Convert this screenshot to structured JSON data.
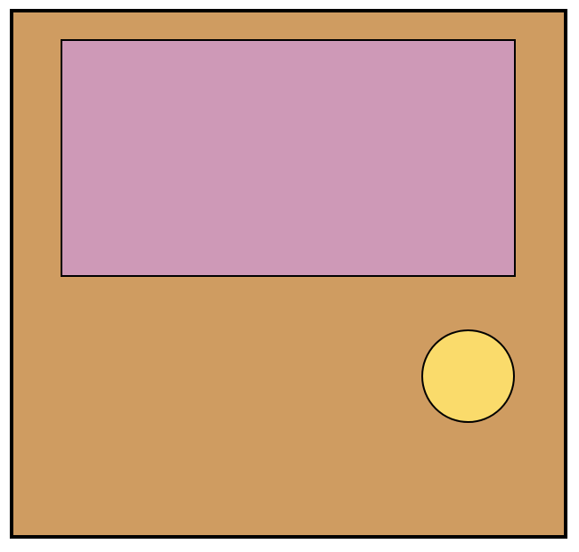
{
  "colors": {
    "background": "#ffffff",
    "panel_fill": "#cf9c61",
    "panel_border": "#000000",
    "rectangle_fill": "#ce99b7",
    "rectangle_border": "#000000",
    "circle_fill": "#fadb6b",
    "circle_border": "#000000"
  },
  "shapes": {
    "panel": "rectangle",
    "upper": "rectangle",
    "lower_right": "circle"
  }
}
